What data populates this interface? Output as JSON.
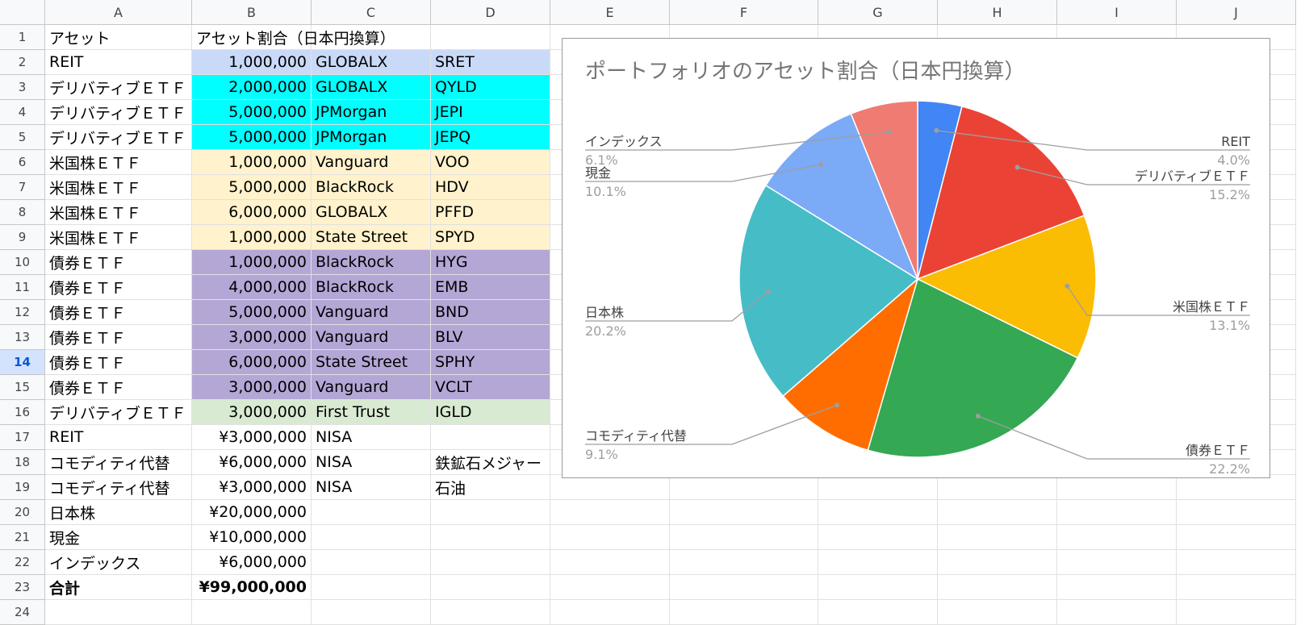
{
  "columns": [
    "A",
    "B",
    "C",
    "D",
    "E",
    "F",
    "G",
    "H",
    "I",
    "J"
  ],
  "selected_row": 14,
  "rows": [
    {
      "n": "1",
      "a": "アセット",
      "b": "アセット割合（日本円換算）",
      "c": "",
      "d": "",
      "fill": ""
    },
    {
      "n": "2",
      "a": "REIT",
      "b": "1,000,000",
      "c": "GLOBALX",
      "d": "SRET",
      "fill": "#c9daf8"
    },
    {
      "n": "3",
      "a": "デリバティブＥＴＦ",
      "b": "2,000,000",
      "c": "GLOBALX",
      "d": "QYLD",
      "fill": "#00ffff"
    },
    {
      "n": "4",
      "a": "デリバティブＥＴＦ",
      "b": "5,000,000",
      "c": "JPMorgan",
      "d": "JEPI",
      "fill": "#00ffff"
    },
    {
      "n": "5",
      "a": "デリバティブＥＴＦ",
      "b": "5,000,000",
      "c": "JPMorgan",
      "d": "JEPQ",
      "fill": "#00ffff"
    },
    {
      "n": "6",
      "a": "米国株ＥＴＦ",
      "b": "1,000,000",
      "c": "Vanguard",
      "d": "VOO",
      "fill": "#fff2cc"
    },
    {
      "n": "7",
      "a": "米国株ＥＴＦ",
      "b": "5,000,000",
      "c": "BlackRock",
      "d": "HDV",
      "fill": "#fff2cc"
    },
    {
      "n": "8",
      "a": "米国株ＥＴＦ",
      "b": "6,000,000",
      "c": "GLOBALX",
      "d": "PFFD",
      "fill": "#fff2cc"
    },
    {
      "n": "9",
      "a": "米国株ＥＴＦ",
      "b": "1,000,000",
      "c": "State Street",
      "d": "SPYD",
      "fill": "#fff2cc"
    },
    {
      "n": "10",
      "a": "債券ＥＴＦ",
      "b": "1,000,000",
      "c": "BlackRock",
      "d": "HYG",
      "fill": "#b4a7d6"
    },
    {
      "n": "11",
      "a": "債券ＥＴＦ",
      "b": "4,000,000",
      "c": "BlackRock",
      "d": "EMB",
      "fill": "#b4a7d6"
    },
    {
      "n": "12",
      "a": "債券ＥＴＦ",
      "b": "5,000,000",
      "c": "Vanguard",
      "d": "BND",
      "fill": "#b4a7d6"
    },
    {
      "n": "13",
      "a": "債券ＥＴＦ",
      "b": "3,000,000",
      "c": "Vanguard",
      "d": "BLV",
      "fill": "#b4a7d6"
    },
    {
      "n": "14",
      "a": "債券ＥＴＦ",
      "b": "6,000,000",
      "c": "State Street",
      "d": "SPHY",
      "fill": "#b4a7d6"
    },
    {
      "n": "15",
      "a": "債券ＥＴＦ",
      "b": "3,000,000",
      "c": "Vanguard",
      "d": "VCLT",
      "fill": "#b4a7d6"
    },
    {
      "n": "16",
      "a": "デリバティブＥＴＦ",
      "b": "3,000,000",
      "c": "First Trust",
      "d": "IGLD",
      "fill": "#d9ead3"
    },
    {
      "n": "17",
      "a": "REIT",
      "b": "¥3,000,000",
      "c": "NISA",
      "d": "",
      "fill": ""
    },
    {
      "n": "18",
      "a": "コモディティ代替",
      "b": "¥6,000,000",
      "c": "NISA",
      "d": "鉄鉱石メジャー",
      "fill": ""
    },
    {
      "n": "19",
      "a": "コモディティ代替",
      "b": "¥3,000,000",
      "c": "NISA",
      "d": "石油",
      "fill": ""
    },
    {
      "n": "20",
      "a": "日本株",
      "b": "¥20,000,000",
      "c": "",
      "d": "",
      "fill": ""
    },
    {
      "n": "21",
      "a": "現金",
      "b": "¥10,000,000",
      "c": "",
      "d": "",
      "fill": ""
    },
    {
      "n": "22",
      "a": "インデックス",
      "b": "¥6,000,000",
      "c": "",
      "d": "",
      "fill": ""
    },
    {
      "n": "23",
      "a": "合計",
      "b": "¥99,000,000",
      "c": "",
      "d": "",
      "fill": "",
      "bold": true
    },
    {
      "n": "24",
      "a": "",
      "b": "",
      "c": "",
      "d": "",
      "fill": ""
    }
  ],
  "chart_data": {
    "type": "pie",
    "title": "ポートフォリオのアセット割合（日本円換算）",
    "start_angle_deg": 0,
    "direction": "clockwise",
    "series": [
      {
        "name": "REIT",
        "pct": "4.0%",
        "value": 4.0,
        "color": "#4285f4",
        "side": "right",
        "label_y": 129
      },
      {
        "name": "デリバティブＥＴＦ",
        "pct": "15.2%",
        "value": 15.2,
        "color": "#ea4335",
        "side": "right",
        "label_y": 172
      },
      {
        "name": "米国株ＥＴＦ",
        "pct": "13.1%",
        "value": 13.1,
        "color": "#fbbc04",
        "side": "right",
        "label_y": 334
      },
      {
        "name": "債券ＥＴＦ",
        "pct": "22.2%",
        "value": 22.2,
        "color": "#34a853",
        "side": "right",
        "label_y": 512
      },
      {
        "name": "コモディティ代替",
        "pct": "9.1%",
        "value": 9.1,
        "color": "#ff6d01",
        "side": "left",
        "label_y": 494
      },
      {
        "name": "日本株",
        "pct": "20.2%",
        "value": 20.2,
        "color": "#46bdc6",
        "side": "left",
        "label_y": 341
      },
      {
        "name": "現金",
        "pct": "10.1%",
        "value": 10.1,
        "color": "#7baaf7",
        "side": "left",
        "label_y": 168
      },
      {
        "name": "インデックス",
        "pct": "6.1%",
        "value": 6.1,
        "color": "#f07b72",
        "side": "left",
        "label_y": 129
      }
    ]
  }
}
